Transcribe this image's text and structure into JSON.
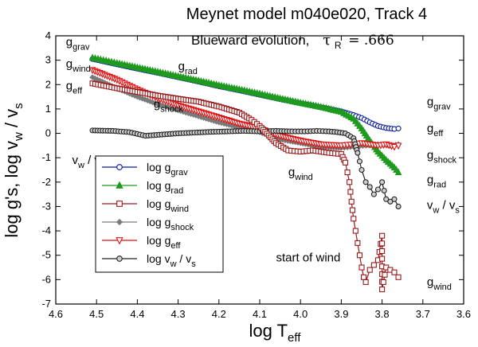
{
  "chart_data": {
    "type": "scatter",
    "title": "Meynet model m040e020, Track 4",
    "subtitle": {
      "text": "Blueward evolution,",
      "tau_symbol": "τ",
      "tau_sub": "R",
      "tau_value": "= .666"
    },
    "xlabel": {
      "base": "log T",
      "sub": "eff"
    },
    "ylabel": {
      "main": "log g's, log v",
      "sub1": "w",
      "mid": " / v",
      "sub2": "s"
    },
    "xlim": [
      4.6,
      3.6
    ],
    "ylim": [
      -7,
      4
    ],
    "x_ticks": [
      4.6,
      4.5,
      4.4,
      4.3,
      4.2,
      4.1,
      4.0,
      3.9,
      3.8,
      3.7,
      3.6
    ],
    "x_tick_labels": [
      "4.6",
      "4.5",
      "4.4",
      "4.3",
      "4.2",
      "4.1",
      "4.0",
      "3.9",
      "3.8",
      "3.7",
      "3.6"
    ],
    "y_ticks": [
      4,
      3,
      2,
      1,
      0,
      -1,
      -2,
      -3,
      -4,
      -5,
      -6,
      -7
    ],
    "y_tick_labels": [
      "4",
      "3",
      "2",
      "1",
      "0",
      "-1",
      "-2",
      "-3",
      "-4",
      "-5",
      "-6",
      "-7"
    ],
    "legend": {
      "placement": "lower-left",
      "entries": [
        {
          "base": "log g",
          "sub": "grav",
          "color": "#0a1a9a",
          "marker": "circle"
        },
        {
          "base": "log g",
          "sub": "rad",
          "color": "#1e9a1e",
          "marker": "triangle-up"
        },
        {
          "base": "log g",
          "sub": "wind",
          "color": "#9a1a1a",
          "marker": "square"
        },
        {
          "base": "log g",
          "sub": "shock",
          "color": "#7a7a7a",
          "marker": "diamond"
        },
        {
          "base": "log g",
          "sub": "eff",
          "color": "#e01010",
          "marker": "triangle-down"
        },
        {
          "base": "log v",
          "sub": "w",
          "mid": " / v",
          "sub2": "s",
          "color": "#222222",
          "marker": "circle"
        }
      ]
    },
    "series": [
      {
        "key": "grav",
        "color": "#0a1a9a",
        "marker": "circle",
        "fill": "none",
        "points": [
          [
            4.51,
            3.05
          ],
          [
            4.45,
            2.83
          ],
          [
            4.4,
            2.65
          ],
          [
            4.35,
            2.48
          ],
          [
            4.3,
            2.3
          ],
          [
            4.25,
            2.12
          ],
          [
            4.2,
            1.93
          ],
          [
            4.15,
            1.76
          ],
          [
            4.1,
            1.58
          ],
          [
            4.05,
            1.4
          ],
          [
            4.0,
            1.23
          ],
          [
            3.95,
            1.07
          ],
          [
            3.9,
            0.9
          ],
          [
            3.87,
            0.75
          ],
          [
            3.85,
            0.63
          ],
          [
            3.83,
            0.45
          ],
          [
            3.81,
            0.3
          ],
          [
            3.79,
            0.22
          ],
          [
            3.77,
            0.18
          ],
          [
            3.76,
            0.2
          ]
        ]
      },
      {
        "key": "rad",
        "color": "#1e9a1e",
        "marker": "triangle-up",
        "fill": "#1e9a1e",
        "points": [
          [
            4.51,
            3.1
          ],
          [
            4.45,
            2.88
          ],
          [
            4.4,
            2.7
          ],
          [
            4.35,
            2.52
          ],
          [
            4.3,
            2.34
          ],
          [
            4.25,
            2.16
          ],
          [
            4.2,
            1.97
          ],
          [
            4.15,
            1.8
          ],
          [
            4.1,
            1.62
          ],
          [
            4.05,
            1.43
          ],
          [
            4.0,
            1.25
          ],
          [
            3.95,
            1.08
          ],
          [
            3.9,
            0.88
          ],
          [
            3.87,
            0.6
          ],
          [
            3.85,
            0.2
          ],
          [
            3.83,
            -0.3
          ],
          [
            3.81,
            -0.75
          ],
          [
            3.79,
            -1.1
          ],
          [
            3.77,
            -1.4
          ],
          [
            3.76,
            -1.6
          ]
        ]
      },
      {
        "key": "shock",
        "color": "#7a7a7a",
        "marker": "diamond",
        "fill": "#7a7a7a",
        "points": [
          [
            4.51,
            2.3
          ],
          [
            4.45,
            1.85
          ],
          [
            4.4,
            1.5
          ],
          [
            4.35,
            1.2
          ],
          [
            4.3,
            0.95
          ],
          [
            4.25,
            0.7
          ],
          [
            4.2,
            0.45
          ],
          [
            4.15,
            0.25
          ],
          [
            4.1,
            0.05
          ],
          [
            4.05,
            -0.25
          ],
          [
            4.0,
            -0.4
          ],
          [
            3.95,
            -0.55
          ],
          [
            3.9,
            -0.6
          ],
          [
            3.87,
            -0.55
          ],
          [
            3.84,
            -0.5
          ],
          [
            3.81,
            -0.45
          ],
          [
            3.78,
            -0.5
          ],
          [
            3.76,
            -0.45
          ]
        ]
      },
      {
        "key": "eff",
        "color": "#e01010",
        "marker": "triangle-down",
        "fill": "none",
        "points": [
          [
            4.51,
            2.6
          ],
          [
            4.45,
            2.2
          ],
          [
            4.4,
            1.8
          ],
          [
            4.35,
            1.45
          ],
          [
            4.3,
            1.15
          ],
          [
            4.25,
            0.9
          ],
          [
            4.2,
            0.65
          ],
          [
            4.15,
            0.4
          ],
          [
            4.1,
            0.2
          ],
          [
            4.05,
            -0.1
          ],
          [
            4.0,
            -0.3
          ],
          [
            3.95,
            -0.45
          ],
          [
            3.9,
            -0.5
          ],
          [
            3.87,
            -0.45
          ],
          [
            3.85,
            -0.4
          ],
          [
            3.83,
            -0.45
          ],
          [
            3.81,
            -0.5
          ],
          [
            3.79,
            -0.45
          ],
          [
            3.77,
            -0.55
          ],
          [
            3.76,
            -0.5
          ]
        ]
      },
      {
        "key": "vw",
        "color": "#222222",
        "marker": "circle",
        "fill": "#cfcfcf",
        "points": [
          [
            4.51,
            0.12
          ],
          [
            4.46,
            0.1
          ],
          [
            4.42,
            0.05
          ],
          [
            4.38,
            -0.1
          ],
          [
            4.34,
            -0.05
          ],
          [
            4.3,
            0.0
          ],
          [
            4.26,
            0.03
          ],
          [
            4.22,
            0.06
          ],
          [
            4.18,
            0.08
          ],
          [
            4.14,
            0.1
          ],
          [
            4.1,
            0.08
          ],
          [
            4.06,
            0.1
          ],
          [
            4.02,
            0.08
          ],
          [
            3.99,
            0.08
          ],
          [
            3.96,
            0.1
          ],
          [
            3.93,
            0.08
          ],
          [
            3.91,
            0.05
          ],
          [
            3.89,
            0.0
          ],
          [
            3.87,
            -0.2
          ],
          [
            3.86,
            -0.8
          ],
          [
            3.85,
            -1.5
          ],
          [
            3.84,
            -2.0
          ],
          [
            3.83,
            -2.2
          ],
          [
            3.82,
            -2.5
          ],
          [
            3.81,
            -2.3
          ],
          [
            3.8,
            -2.0
          ],
          [
            3.79,
            -2.7
          ],
          [
            3.78,
            -2.8
          ],
          [
            3.77,
            -2.7
          ],
          [
            3.76,
            -3.0
          ]
        ]
      },
      {
        "key": "wind",
        "color": "#9a1a1a",
        "marker": "square",
        "fill": "none",
        "points": [
          [
            4.51,
            2.05
          ],
          [
            4.45,
            1.85
          ],
          [
            4.4,
            1.7
          ],
          [
            4.35,
            1.55
          ],
          [
            4.3,
            1.42
          ],
          [
            4.25,
            1.3
          ],
          [
            4.2,
            1.1
          ],
          [
            4.15,
            0.85
          ],
          [
            4.12,
            0.55
          ],
          [
            4.1,
            0.3
          ],
          [
            4.06,
            -0.4
          ],
          [
            4.03,
            -0.7
          ],
          [
            4.0,
            -0.75
          ],
          [
            3.97,
            -0.7
          ],
          [
            3.95,
            -0.75
          ],
          [
            3.93,
            -0.8
          ],
          [
            3.9,
            -0.85
          ],
          [
            3.89,
            -1.2
          ],
          [
            3.88,
            -2.0
          ],
          [
            3.875,
            -2.8
          ],
          [
            3.87,
            -3.5
          ],
          [
            3.865,
            -4.0
          ],
          [
            3.86,
            -4.5
          ],
          [
            3.855,
            -5.0
          ],
          [
            3.85,
            -5.5
          ],
          [
            3.845,
            -5.9
          ],
          [
            3.84,
            -6.1
          ],
          [
            3.83,
            -5.6
          ],
          [
            3.82,
            -5.4
          ],
          [
            3.81,
            -5.2
          ],
          [
            3.8,
            -4.2
          ],
          [
            3.8,
            -6.4
          ],
          [
            3.79,
            -5.5
          ],
          [
            3.78,
            -5.6
          ],
          [
            3.77,
            -5.7
          ],
          [
            3.76,
            -5.9
          ]
        ]
      }
    ],
    "annotations": [
      {
        "base": "g",
        "sub": "grav",
        "x": 4.575,
        "y": 3.6
      },
      {
        "base": "g",
        "sub": "wind",
        "x": 4.575,
        "y": 2.7
      },
      {
        "base": "g",
        "sub": "eff",
        "x": 4.575,
        "y": 1.8
      },
      {
        "base": "g",
        "sub": "rad",
        "x": 4.3,
        "y": 2.6
      },
      {
        "base": "g",
        "sub": "shock",
        "x": 4.36,
        "y": 1.05
      },
      {
        "base": "v",
        "sub": "w",
        "mid": " / v",
        "sub2": "s",
        "x": 4.56,
        "y": -1.25
      },
      {
        "base": "g",
        "sub": "wind",
        "x": 4.03,
        "y": -1.75
      },
      {
        "base": "start of wind",
        "x": 4.06,
        "y": -5.25
      },
      {
        "base": "g",
        "sub": "grav",
        "x": 3.69,
        "y": 1.15
      },
      {
        "base": "g",
        "sub": "eff",
        "x": 3.69,
        "y": 0.05
      },
      {
        "base": "g",
        "sub": "shock",
        "x": 3.69,
        "y": -1.05
      },
      {
        "base": "g",
        "sub": "rad",
        "x": 3.69,
        "y": -2.05
      },
      {
        "base": "v",
        "sub": "w",
        "mid": " / v",
        "sub2": "s",
        "x": 3.69,
        "y": -3.1
      },
      {
        "base": "g",
        "sub": "wind",
        "x": 3.69,
        "y": -6.25
      }
    ]
  }
}
